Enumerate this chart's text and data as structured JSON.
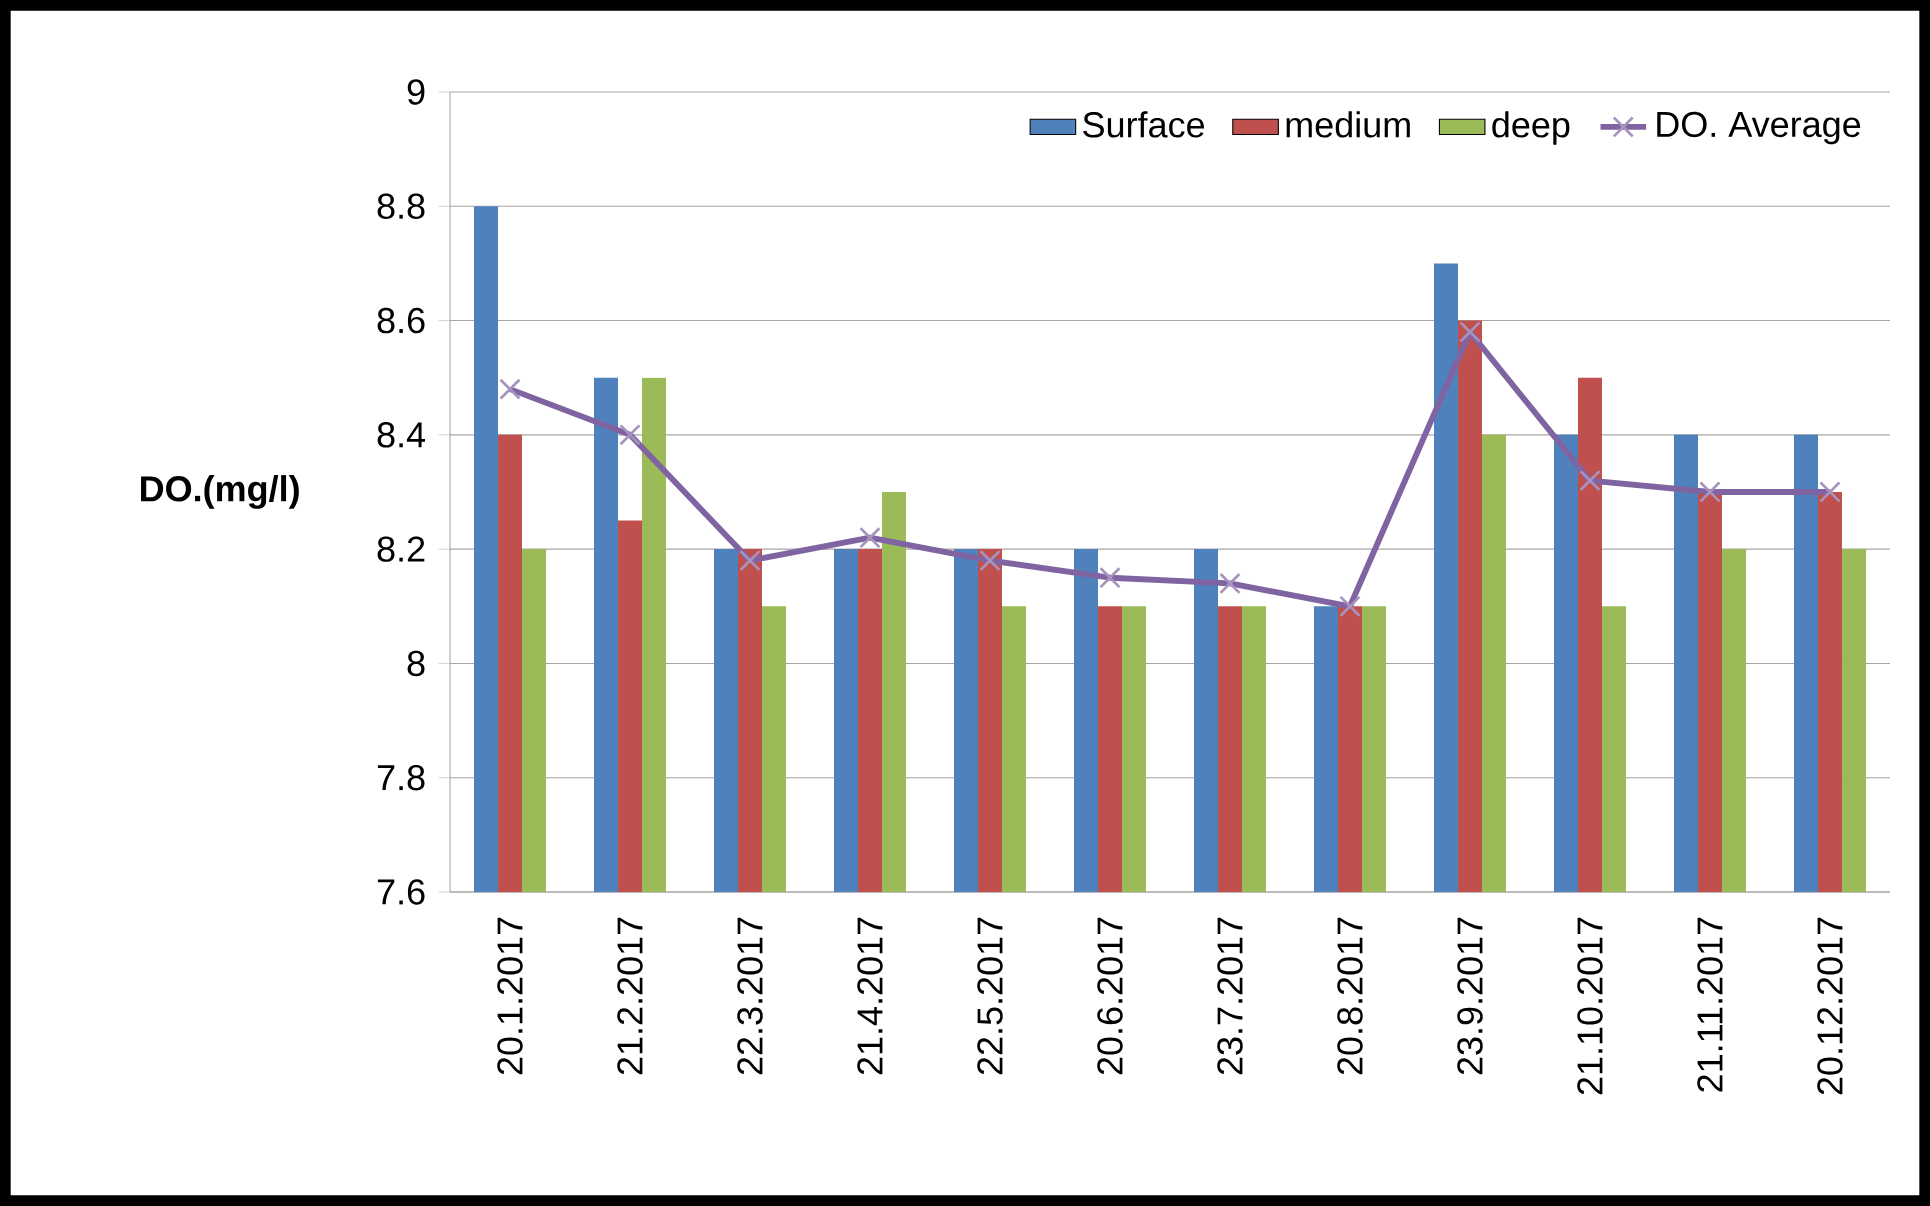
{
  "chart_data": {
    "type": "bar",
    "ylabel": "DO.(mg/l)",
    "categories": [
      "20.1.2017",
      "21.2.2017",
      "22.3.2017",
      "21.4.2017",
      "22.5.2017",
      "20.6.2017",
      "23.7.2017",
      "20.8.2017",
      "23.9.2017",
      "21.10.2017",
      "21.11.2017",
      "20.12.2017"
    ],
    "series": [
      {
        "name": "Surface",
        "color": "#4f81bd",
        "values": [
          8.8,
          8.5,
          8.2,
          8.2,
          8.2,
          8.2,
          8.2,
          8.1,
          8.7,
          8.4,
          8.4,
          8.4
        ]
      },
      {
        "name": "medium",
        "color": "#c0504d",
        "values": [
          8.4,
          8.25,
          8.2,
          8.2,
          8.2,
          8.1,
          8.1,
          8.1,
          8.6,
          8.5,
          8.3,
          8.3
        ]
      },
      {
        "name": "deep",
        "color": "#9bbb59",
        "values": [
          8.2,
          8.5,
          8.1,
          8.3,
          8.1,
          8.1,
          8.1,
          8.1,
          8.4,
          8.1,
          8.2,
          8.2
        ]
      },
      {
        "name": "DO. Average",
        "type": "line",
        "color": "#8064a2",
        "values": [
          8.48,
          8.4,
          8.18,
          8.22,
          8.18,
          8.15,
          8.14,
          8.1,
          8.58,
          8.32,
          8.3,
          8.3
        ]
      }
    ],
    "ylim": [
      7.6,
      9
    ],
    "yticks": [
      7.6,
      7.8,
      8,
      8.2,
      8.4,
      8.6,
      8.8,
      9
    ],
    "grid": "y",
    "legend": "top right",
    "marker": "cross"
  }
}
